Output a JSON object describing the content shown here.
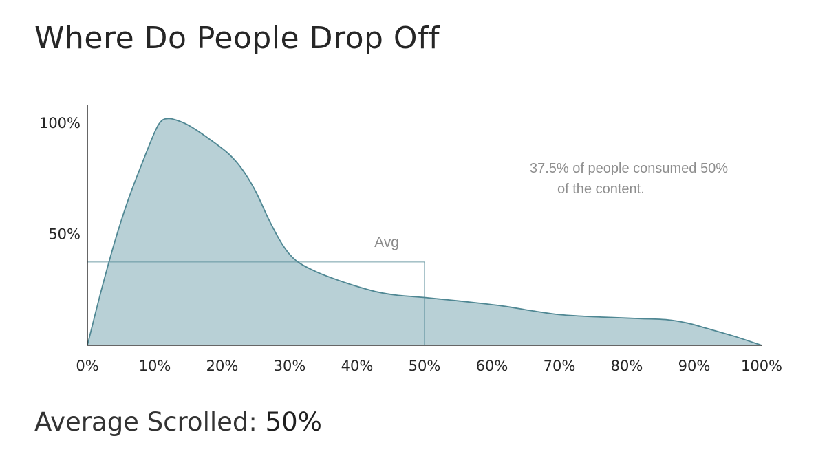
{
  "title": "Where Do People Drop Off",
  "footer": {
    "label": "Average Scrolled:",
    "value": "50%"
  },
  "colors": {
    "fill": "#b8d0d6",
    "line": "#4f8793",
    "axis": "#333333"
  },
  "chart_data": {
    "type": "area",
    "title": "",
    "xlabel": "",
    "ylabel": "",
    "xlim": [
      0,
      100
    ],
    "ylim": [
      0,
      108
    ],
    "x_ticks": [
      "0%",
      "10%",
      "20%",
      "30%",
      "40%",
      "50%",
      "60%",
      "70%",
      "80%",
      "90%",
      "100%"
    ],
    "y_ticks": [
      {
        "value": 50,
        "label": "50%"
      },
      {
        "value": 100,
        "label": "100%"
      }
    ],
    "x": [
      0,
      2,
      4,
      6,
      8,
      10,
      11,
      12,
      13,
      15,
      18,
      21,
      23,
      25,
      27,
      29,
      31,
      34,
      37,
      40,
      43,
      46,
      50,
      54,
      58,
      62,
      66,
      70,
      74,
      78,
      82,
      86,
      89,
      92,
      96,
      100
    ],
    "values": [
      0,
      24,
      46,
      65,
      81,
      96,
      101,
      102,
      101.5,
      99,
      93,
      86,
      79,
      69,
      56,
      45,
      38,
      33,
      29.5,
      26.5,
      24,
      22.5,
      21.5,
      20.3,
      19,
      17.5,
      15.5,
      13.8,
      13,
      12.5,
      12,
      11.5,
      10,
      7.5,
      4,
      0
    ],
    "grid": false,
    "legend": "none",
    "avg": {
      "label": "Avg",
      "x": 50,
      "y": 37.5
    },
    "annotation": {
      "lines": [
        "37.5% of people consumed 50%",
        "of the content."
      ]
    }
  }
}
